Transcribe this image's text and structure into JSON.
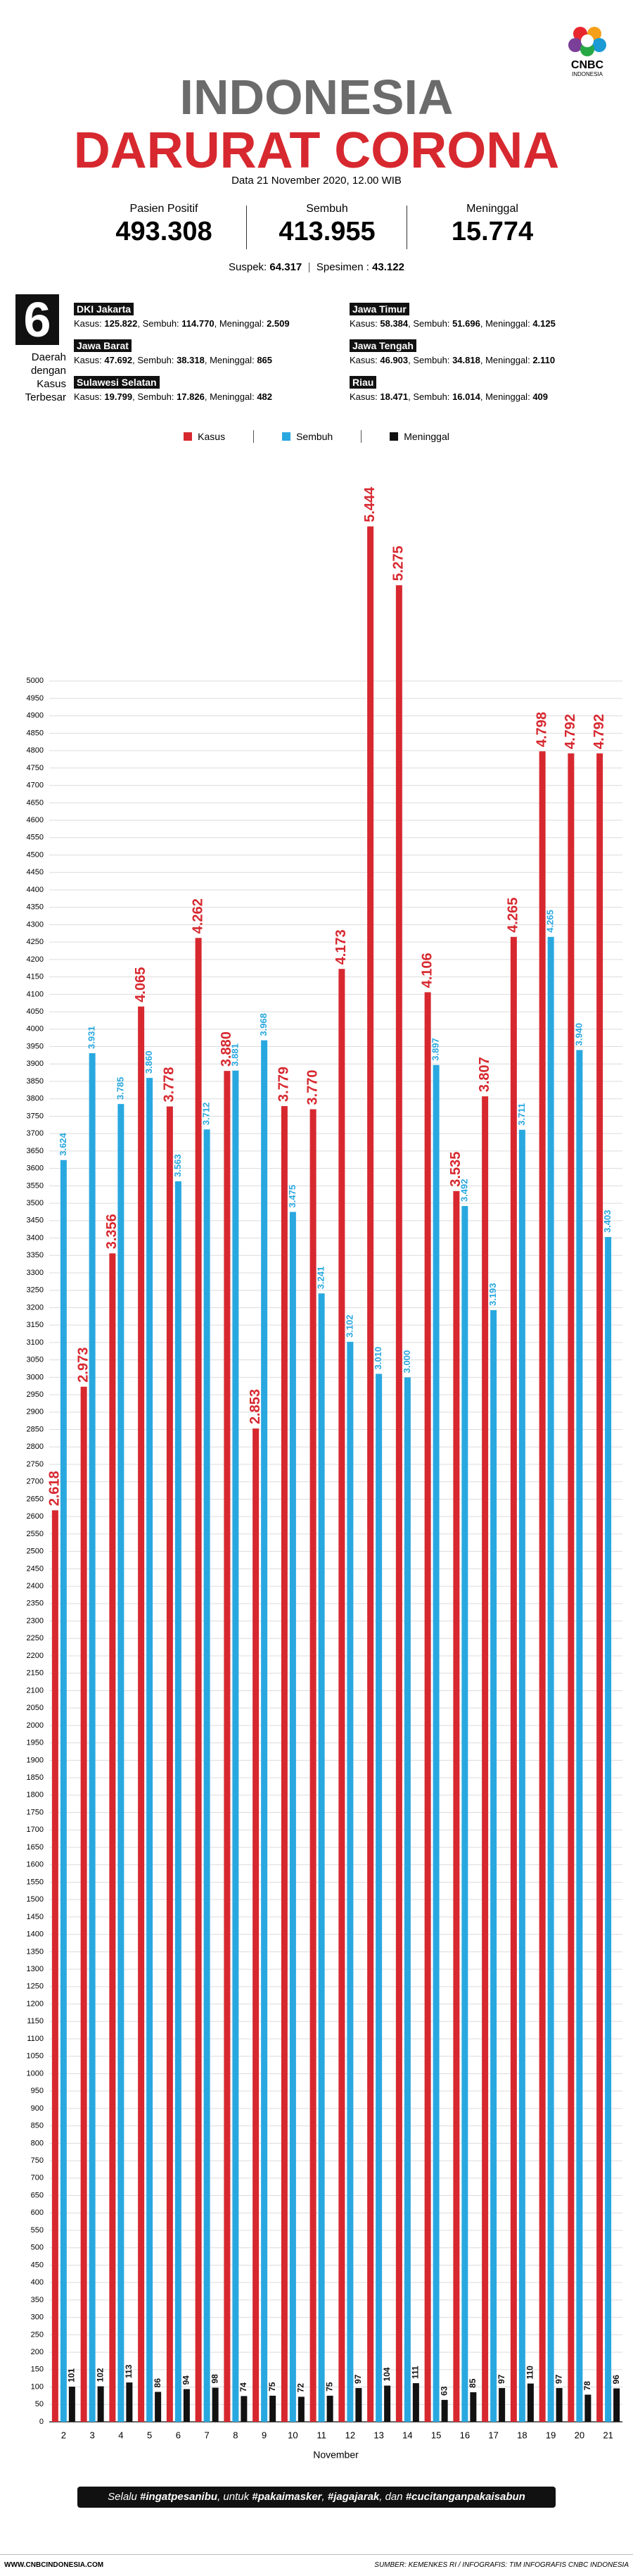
{
  "header": {
    "title_line1": "INDONESIA",
    "title_line2": "DARURAT CORONA",
    "date": "Data 21 November 2020, 12.00 WIB",
    "logo_top": "CNBC",
    "logo_bottom": "INDONESIA"
  },
  "stats": {
    "items": [
      {
        "label": "Pasien Positif",
        "value": "493.308"
      },
      {
        "label": "Sembuh",
        "value": "413.955"
      },
      {
        "label": "Meninggal",
        "value": "15.774"
      }
    ],
    "suspek_label": "Suspek:",
    "suspek": "64.317",
    "spesimen_label": "Spesimen :",
    "spesimen": "43.122"
  },
  "regions_block": {
    "count": "6",
    "caption": "Daerah dengan Kasus Terbesar",
    "labels": {
      "kasus": "Kasus:",
      "sembuh": "Sembuh:",
      "meninggal": "Meninggal:",
      "separator": ","
    },
    "regions": [
      {
        "name": "DKI Jakarta",
        "kasus": "125.822",
        "sembuh": "114.770",
        "meninggal": "2.509"
      },
      {
        "name": "Jawa Timur",
        "kasus": "58.384",
        "sembuh": "51.696",
        "meninggal": "4.125"
      },
      {
        "name": "Jawa Barat",
        "kasus": "47.692",
        "sembuh": "38.318",
        "meninggal": "865"
      },
      {
        "name": "Jawa Tengah",
        "kasus": "46.903",
        "sembuh": "34.818",
        "meninggal": "2.110"
      },
      {
        "name": "Sulawesi Selatan",
        "kasus": "19.799",
        "sembuh": "17.826",
        "meninggal": "482"
      },
      {
        "name": "Riau",
        "kasus": "18.471",
        "sembuh": "16.014",
        "meninggal": "409"
      }
    ]
  },
  "chart_data": {
    "type": "bar",
    "x_label": "November",
    "grid": true,
    "categories": [
      "2",
      "3",
      "4",
      "5",
      "6",
      "7",
      "8",
      "9",
      "10",
      "11",
      "12",
      "13",
      "14",
      "15",
      "16",
      "17",
      "18",
      "19",
      "20",
      "21"
    ],
    "series": [
      {
        "name": "Kasus",
        "color": "#d7282f",
        "values": [
          2618,
          2973,
          3356,
          4065,
          3778,
          4262,
          3880,
          2853,
          3779,
          3770,
          4173,
          5444,
          5275,
          4106,
          3535,
          3807,
          4265,
          4798,
          4792,
          4792
        ],
        "value_labels": [
          "2.618",
          "2.973",
          "3.356",
          "4.065",
          "3.778",
          "4.262",
          "3.880",
          "2.853",
          "3.779",
          "3.770",
          "4.173",
          "5.444",
          "5.275",
          "4.106",
          "3.535",
          "3.807",
          "4.265",
          "4.798",
          "4.792",
          "4.792"
        ]
      },
      {
        "name": "Sembuh",
        "color": "#29a8e0",
        "values": [
          3624,
          3931,
          3785,
          3860,
          3563,
          3712,
          3881,
          3968,
          3475,
          3241,
          3102,
          3010,
          3000,
          3897,
          3492,
          3193,
          3711,
          4265,
          3940,
          3403
        ],
        "value_labels": [
          "3.624",
          "3.931",
          "3.785",
          "3.860",
          "3.563",
          "3.712",
          "3.881",
          "3.968",
          "3.475",
          "3.241",
          "3.102",
          "3.010",
          "3.000",
          "3.897",
          "3.492",
          "3.193",
          "3.711",
          "4.265",
          "3.940",
          "3.403"
        ]
      },
      {
        "name": "Meninggal",
        "color": "#111111",
        "values": [
          101,
          102,
          113,
          86,
          94,
          98,
          74,
          75,
          72,
          75,
          97,
          104,
          111,
          63,
          85,
          97,
          110,
          97,
          78,
          96
        ]
      }
    ],
    "ylim": [
      0,
      5500
    ],
    "yticks": [
      0,
      50,
      100,
      150,
      200,
      250,
      300,
      350,
      400,
      450,
      500,
      550,
      600,
      650,
      700,
      750,
      800,
      850,
      900,
      950,
      1000,
      1050,
      1100,
      1150,
      1200,
      1250,
      1300,
      1350,
      1400,
      1450,
      1500,
      1550,
      1600,
      1650,
      1700,
      1750,
      1800,
      1850,
      1900,
      1950,
      2000,
      2050,
      2100,
      2150,
      2200,
      2250,
      2300,
      2350,
      2400,
      2450,
      2500,
      2550,
      2600,
      2650,
      2700,
      2750,
      2800,
      2850,
      2900,
      2950,
      3000,
      3050,
      3100,
      3150,
      3200,
      3250,
      3300,
      3350,
      3400,
      3450,
      3500,
      3550,
      3600,
      3650,
      3700,
      3750,
      3800,
      3850,
      3900,
      3950,
      4000,
      4050,
      4100,
      4150,
      4200,
      4250,
      4300,
      4350,
      4400,
      4450,
      4500,
      4550,
      4600,
      4650,
      4700,
      4750,
      4800,
      4850,
      4900,
      4950,
      5000
    ]
  },
  "footer": {
    "tagline": [
      {
        "text": "Selalu ",
        "bold": false
      },
      {
        "text": "#ingatpesanibu",
        "bold": true
      },
      {
        "text": ", untuk ",
        "bold": false
      },
      {
        "text": "#pakaimasker",
        "bold": true
      },
      {
        "text": ", ",
        "bold": false
      },
      {
        "text": "#jagajarak",
        "bold": true
      },
      {
        "text": ", dan ",
        "bold": false
      },
      {
        "text": "#cucitanganpakaisabun",
        "bold": true
      }
    ],
    "website": "WWW.CNBCINDONESIA.COM",
    "source": "SUMBER: KEMENKES RI / INFOGRAFIS: TIM INFOGRAFIS CNBC INDONESIA"
  }
}
